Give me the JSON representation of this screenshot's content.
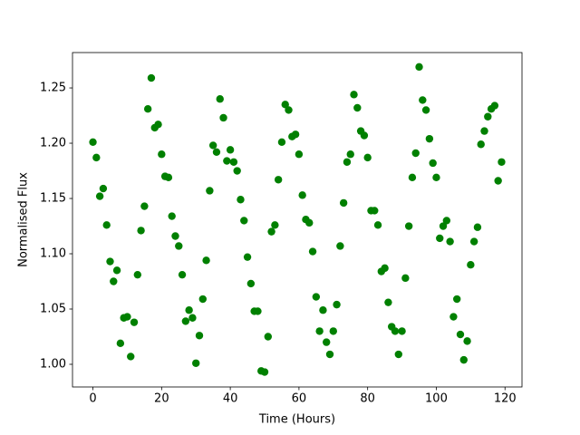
{
  "chart_data": {
    "type": "scatter",
    "x_label": "Time (Hours)",
    "y_label": "Normalised Flux",
    "color": "#008000",
    "x": [
      0,
      1,
      2,
      3,
      4,
      5,
      6,
      7,
      8,
      9,
      10,
      11,
      12,
      13,
      14,
      15,
      16,
      17,
      18,
      19,
      20,
      21,
      22,
      23,
      24,
      25,
      26,
      27,
      28,
      29,
      30,
      31,
      32,
      33,
      34,
      35,
      36,
      37,
      38,
      39,
      40,
      41,
      42,
      43,
      44,
      45,
      46,
      47,
      48,
      49,
      50,
      51,
      52,
      53,
      54,
      55,
      56,
      57,
      58,
      59,
      60,
      61,
      62,
      63,
      64,
      65,
      66,
      67,
      68,
      69,
      70,
      71,
      72,
      73,
      74,
      75,
      76,
      77,
      78,
      79,
      80,
      81,
      82,
      83,
      84,
      85,
      86,
      87,
      88,
      89,
      90,
      91,
      92,
      93,
      94,
      95,
      96,
      97,
      98,
      99,
      100,
      101,
      102,
      103,
      104,
      105,
      106,
      107,
      108,
      109,
      110,
      111,
      112,
      113,
      114,
      115,
      116,
      117,
      118,
      119
    ],
    "values": [
      1.201,
      1.187,
      1.152,
      1.159,
      1.126,
      1.093,
      1.075,
      1.085,
      1.019,
      1.042,
      1.043,
      1.007,
      1.038,
      1.081,
      1.121,
      1.143,
      1.231,
      1.259,
      1.214,
      1.217,
      1.19,
      1.17,
      1.169,
      1.134,
      1.116,
      1.107,
      1.081,
      1.039,
      1.049,
      1.042,
      1.001,
      1.026,
      1.059,
      1.094,
      1.157,
      1.198,
      1.192,
      1.24,
      1.223,
      1.184,
      1.194,
      1.183,
      1.175,
      1.149,
      1.13,
      1.097,
      1.073,
      1.048,
      1.048,
      0.994,
      0.993,
      1.025,
      1.12,
      1.126,
      1.167,
      1.201,
      1.235,
      1.23,
      1.206,
      1.208,
      1.19,
      1.153,
      1.131,
      1.128,
      1.102,
      1.061,
      1.03,
      1.049,
      1.02,
      1.009,
      1.03,
      1.054,
      1.107,
      1.146,
      1.183,
      1.19,
      1.244,
      1.232,
      1.211,
      1.207,
      1.187,
      1.139,
      1.139,
      1.126,
      1.084,
      1.087,
      1.056,
      1.034,
      1.03,
      1.009,
      1.03,
      1.078,
      1.125,
      1.169,
      1.191,
      1.269,
      1.239,
      1.23,
      1.204,
      1.182,
      1.169,
      1.114,
      1.125,
      1.13,
      1.111,
      1.043,
      1.059,
      1.027,
      1.004,
      1.021,
      1.09,
      1.111,
      1.124,
      1.199,
      1.211,
      1.224,
      1.231,
      1.234,
      1.166,
      1.183
    ],
    "xlim": [
      -5.95,
      124.95
    ],
    "ylim": [
      0.9795,
      1.282
    ],
    "xticks": [
      0,
      20,
      40,
      60,
      80,
      100,
      120
    ],
    "yticks": [
      {
        "value": 1.0,
        "label": "1.00"
      },
      1.05,
      {
        "value": 1.1,
        "label": "1.10"
      },
      1.15,
      {
        "value": 1.2,
        "label": "1.20"
      },
      1.25
    ]
  }
}
